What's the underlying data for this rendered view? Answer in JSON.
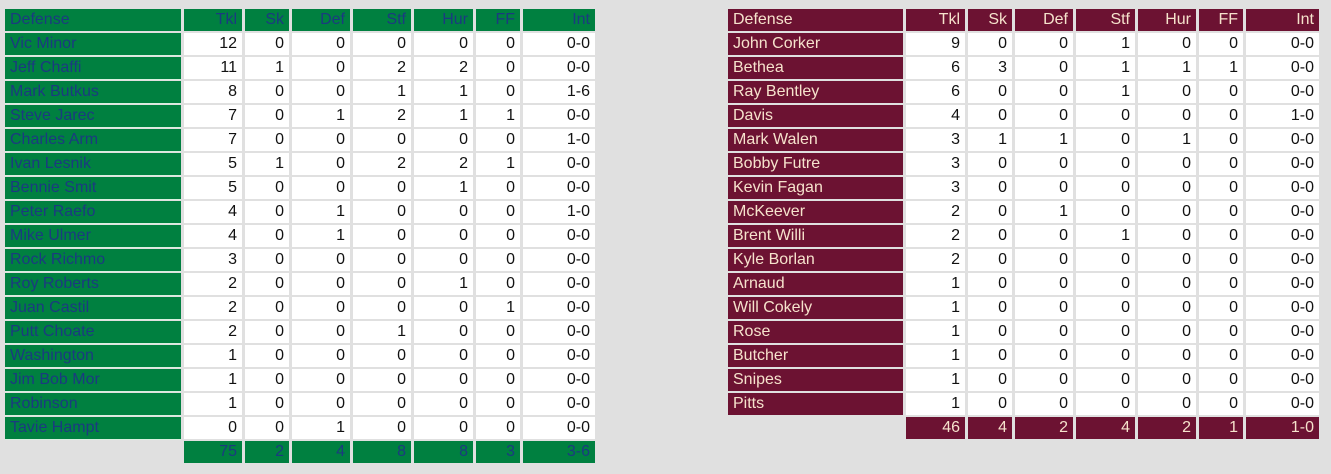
{
  "colors": {
    "home_bg": "#008040",
    "home_text": "#1b3a80",
    "away_bg": "#6c1232",
    "away_text": "#f6e2cc"
  },
  "home": {
    "headers": [
      "Defense",
      "Tkl",
      "Sk",
      "Def",
      "Stf",
      "Hur",
      "FF",
      "Int"
    ],
    "rows": [
      [
        "Vic Minor",
        "12",
        "0",
        "0",
        "0",
        "0",
        "0",
        "0-0"
      ],
      [
        "Jeff Chaffi",
        "11",
        "1",
        "0",
        "2",
        "2",
        "0",
        "0-0"
      ],
      [
        "Mark Butkus",
        "8",
        "0",
        "0",
        "1",
        "1",
        "0",
        "1-6"
      ],
      [
        "Steve Jarec",
        "7",
        "0",
        "1",
        "2",
        "1",
        "1",
        "0-0"
      ],
      [
        "Charles Arm",
        "7",
        "0",
        "0",
        "0",
        "0",
        "0",
        "1-0"
      ],
      [
        "Ivan Lesnik",
        "5",
        "1",
        "0",
        "2",
        "2",
        "1",
        "0-0"
      ],
      [
        "Bennie Smit",
        "5",
        "0",
        "0",
        "0",
        "1",
        "0",
        "0-0"
      ],
      [
        "Peter Raefo",
        "4",
        "0",
        "1",
        "0",
        "0",
        "0",
        "1-0"
      ],
      [
        "Mike Ulmer",
        "4",
        "0",
        "1",
        "0",
        "0",
        "0",
        "0-0"
      ],
      [
        "Rock Richmo",
        "3",
        "0",
        "0",
        "0",
        "0",
        "0",
        "0-0"
      ],
      [
        "Roy Roberts",
        "2",
        "0",
        "0",
        "0",
        "1",
        "0",
        "0-0"
      ],
      [
        "Juan Castil",
        "2",
        "0",
        "0",
        "0",
        "0",
        "1",
        "0-0"
      ],
      [
        "Putt Choate",
        "2",
        "0",
        "0",
        "1",
        "0",
        "0",
        "0-0"
      ],
      [
        "Washington",
        "1",
        "0",
        "0",
        "0",
        "0",
        "0",
        "0-0"
      ],
      [
        "Jim Bob Mor",
        "1",
        "0",
        "0",
        "0",
        "0",
        "0",
        "0-0"
      ],
      [
        "Robinson",
        "1",
        "0",
        "0",
        "0",
        "0",
        "0",
        "0-0"
      ],
      [
        "Tavie Hampt",
        "0",
        "0",
        "1",
        "0",
        "0",
        "0",
        "0-0"
      ]
    ],
    "totals": [
      "75",
      "2",
      "4",
      "8",
      "8",
      "3",
      "3-6"
    ]
  },
  "away": {
    "headers": [
      "Defense",
      "Tkl",
      "Sk",
      "Def",
      "Stf",
      "Hur",
      "FF",
      "Int"
    ],
    "rows": [
      [
        "John Corker",
        "9",
        "0",
        "0",
        "1",
        "0",
        "0",
        "0-0"
      ],
      [
        "Bethea",
        "6",
        "3",
        "0",
        "1",
        "1",
        "1",
        "0-0"
      ],
      [
        "Ray Bentley",
        "6",
        "0",
        "0",
        "1",
        "0",
        "0",
        "0-0"
      ],
      [
        "Davis",
        "4",
        "0",
        "0",
        "0",
        "0",
        "0",
        "1-0"
      ],
      [
        "Mark Walen",
        "3",
        "1",
        "1",
        "0",
        "1",
        "0",
        "0-0"
      ],
      [
        "Bobby Futre",
        "3",
        "0",
        "0",
        "0",
        "0",
        "0",
        "0-0"
      ],
      [
        "Kevin Fagan",
        "3",
        "0",
        "0",
        "0",
        "0",
        "0",
        "0-0"
      ],
      [
        "McKeever",
        "2",
        "0",
        "1",
        "0",
        "0",
        "0",
        "0-0"
      ],
      [
        "Brent Willi",
        "2",
        "0",
        "0",
        "1",
        "0",
        "0",
        "0-0"
      ],
      [
        "Kyle Borlan",
        "2",
        "0",
        "0",
        "0",
        "0",
        "0",
        "0-0"
      ],
      [
        "Arnaud",
        "1",
        "0",
        "0",
        "0",
        "0",
        "0",
        "0-0"
      ],
      [
        "Will Cokely",
        "1",
        "0",
        "0",
        "0",
        "0",
        "0",
        "0-0"
      ],
      [
        "Rose",
        "1",
        "0",
        "0",
        "0",
        "0",
        "0",
        "0-0"
      ],
      [
        "Butcher",
        "1",
        "0",
        "0",
        "0",
        "0",
        "0",
        "0-0"
      ],
      [
        "Snipes",
        "1",
        "0",
        "0",
        "0",
        "0",
        "0",
        "0-0"
      ],
      [
        "Pitts",
        "1",
        "0",
        "0",
        "0",
        "0",
        "0",
        "0-0"
      ]
    ],
    "totals": [
      "46",
      "4",
      "2",
      "4",
      "2",
      "1",
      "1-0"
    ]
  }
}
